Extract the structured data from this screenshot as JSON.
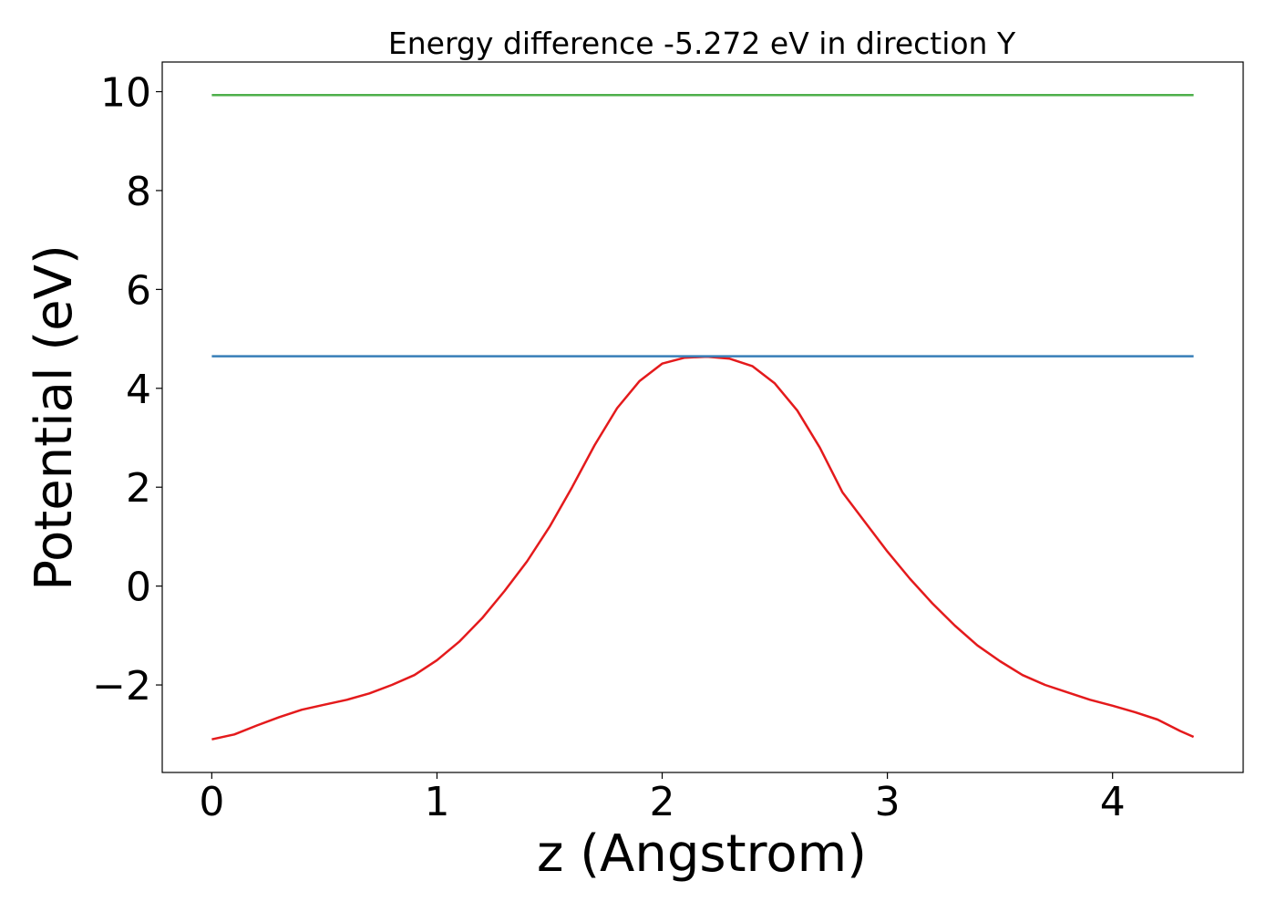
{
  "chart_data": {
    "type": "line",
    "title": "Energy difference -5.272 eV in direction Y",
    "xlabel": "z (Angstrom)",
    "ylabel": "Potential (eV)",
    "xlim": [
      -0.22,
      4.58
    ],
    "ylim": [
      -3.77,
      10.6
    ],
    "xticks": [
      0,
      1,
      2,
      3,
      4
    ],
    "xtick_labels": [
      "0",
      "1",
      "2",
      "3",
      "4"
    ],
    "yticks": [
      -2,
      0,
      2,
      4,
      6,
      8,
      10
    ],
    "ytick_labels": [
      "−2",
      "0",
      "2",
      "4",
      "6",
      "8",
      "10"
    ],
    "grid": false,
    "series": [
      {
        "color": "#e41a1c",
        "x": [
          0.0,
          0.1,
          0.2,
          0.3,
          0.4,
          0.5,
          0.6,
          0.7,
          0.8,
          0.9,
          1.0,
          1.1,
          1.2,
          1.3,
          1.4,
          1.5,
          1.6,
          1.7,
          1.8,
          1.9,
          2.0,
          2.1,
          2.2,
          2.3,
          2.4,
          2.5,
          2.6,
          2.7,
          2.8,
          2.9,
          3.0,
          3.1,
          3.2,
          3.3,
          3.4,
          3.5,
          3.6,
          3.7,
          3.8,
          3.9,
          4.0,
          4.1,
          4.2,
          4.3,
          4.36
        ],
        "y": [
          -3.1,
          -3.0,
          -2.82,
          -2.65,
          -2.5,
          -2.4,
          -2.3,
          -2.17,
          -2.0,
          -1.8,
          -1.5,
          -1.12,
          -0.65,
          -0.1,
          0.5,
          1.2,
          2.0,
          2.85,
          3.6,
          4.15,
          4.5,
          4.62,
          4.64,
          4.6,
          4.45,
          4.1,
          3.55,
          2.8,
          1.9,
          1.3,
          0.7,
          0.15,
          -0.35,
          -0.8,
          -1.2,
          -1.52,
          -1.8,
          -2.0,
          -2.15,
          -2.3,
          -2.42,
          -2.55,
          -2.7,
          -2.93,
          -3.05
        ]
      },
      {
        "color": "#377eb8",
        "x": [
          0.0,
          4.36
        ],
        "y": [
          4.65,
          4.65
        ]
      },
      {
        "color": "#4daf4a",
        "x": [
          0.0,
          4.36
        ],
        "y": [
          9.93,
          9.93
        ]
      }
    ]
  }
}
